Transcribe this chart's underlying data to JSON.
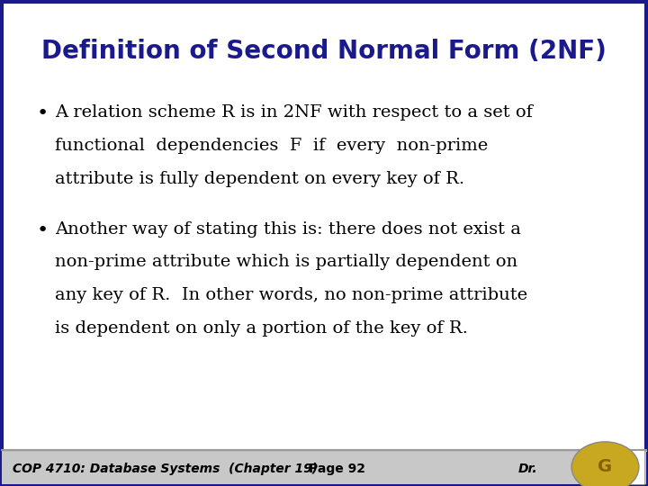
{
  "title": "Definition of Second Normal Form (2NF)",
  "title_color": "#1a1a8c",
  "body_bg": "#ffffff",
  "outer_bg": "#e8e8f0",
  "border_color": "#1a1a8c",
  "bullet1_lines": [
    "A relation scheme R is in 2NF with respect to a set of",
    "functional  dependencies  F  if  every  non-prime",
    "attribute is fully dependent on every key of R."
  ],
  "bullet2_lines": [
    "Another way of stating this is: there does not exist a",
    "non-prime attribute which is partially dependent on",
    "any key of R.  In other words, no non-prime attribute",
    "is dependent on only a portion of the key of R."
  ],
  "footer_text1": "COP 4710: Database Systems  (Chapter 19)",
  "footer_text2": "Page 92",
  "footer_text3": "Dr.",
  "footer_bg1": "#c8c8c8",
  "footer_bg2": "#a8a8a8",
  "footer_text_color": "#000000",
  "text_color": "#000000",
  "title_fontsize": 20,
  "body_fontsize": 14,
  "bullet_fontsize": 16,
  "footer_fontsize": 10
}
